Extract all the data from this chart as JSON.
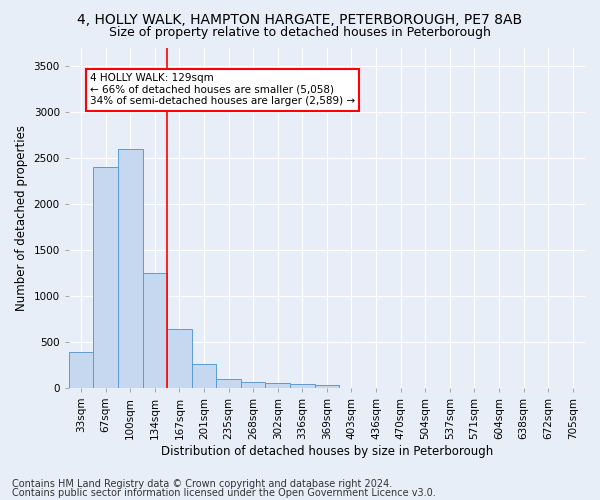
{
  "title1": "4, HOLLY WALK, HAMPTON HARGATE, PETERBOROUGH, PE7 8AB",
  "title2": "Size of property relative to detached houses in Peterborough",
  "xlabel": "Distribution of detached houses by size in Peterborough",
  "ylabel": "Number of detached properties",
  "footer1": "Contains HM Land Registry data © Crown copyright and database right 2024.",
  "footer2": "Contains public sector information licensed under the Open Government Licence v3.0.",
  "categories": [
    "33sqm",
    "67sqm",
    "100sqm",
    "134sqm",
    "167sqm",
    "201sqm",
    "235sqm",
    "268sqm",
    "302sqm",
    "336sqm",
    "369sqm",
    "403sqm",
    "436sqm",
    "470sqm",
    "504sqm",
    "537sqm",
    "571sqm",
    "604sqm",
    "638sqm",
    "672sqm",
    "705sqm"
  ],
  "bar_values": [
    390,
    2400,
    2600,
    1250,
    640,
    260,
    100,
    60,
    55,
    45,
    35,
    0,
    0,
    0,
    0,
    0,
    0,
    0,
    0,
    0,
    0
  ],
  "bar_color": "#c5d8f0",
  "bar_edge_color": "#5b9bd5",
  "vline_x": 3.5,
  "vline_color": "red",
  "annotation_line1": "4 HOLLY WALK: 129sqm",
  "annotation_line2": "← 66% of detached houses are smaller (5,058)",
  "annotation_line3": "34% of semi-detached houses are larger (2,589) →",
  "annotation_box_color": "white",
  "annotation_box_edge_color": "red",
  "ylim": [
    0,
    3700
  ],
  "yticks": [
    0,
    500,
    1000,
    1500,
    2000,
    2500,
    3000,
    3500
  ],
  "background_color": "#e8eef8",
  "grid_color": "white",
  "title1_fontsize": 10,
  "title2_fontsize": 9,
  "xlabel_fontsize": 8.5,
  "ylabel_fontsize": 8.5,
  "tick_fontsize": 7.5,
  "footer_fontsize": 7
}
